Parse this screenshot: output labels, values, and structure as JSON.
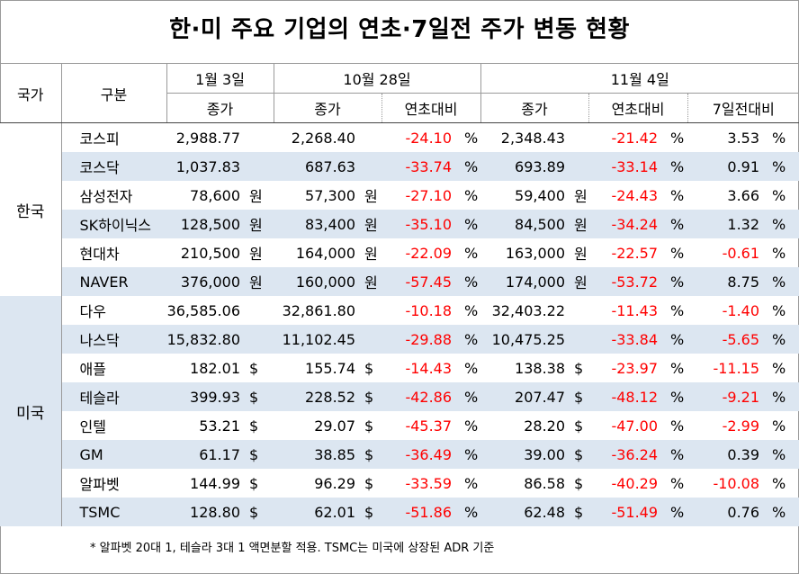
{
  "title": "한·미 주요 기업의 연초·7일전 주가 변동 현황",
  "header": {
    "country": "국가",
    "category": "구분",
    "jan3": "1월 3일",
    "oct28": "10월 28일",
    "nov4": "11월 4일",
    "close": "종가",
    "ytd": "연초대비",
    "d7": "7일전대비"
  },
  "groups": {
    "kr": "한국",
    "us": "미국"
  },
  "rows": [
    {
      "name": "코스피",
      "jan3": "2,988.77",
      "jan3_unit": "",
      "oct28": "2,268.40",
      "oct28_unit": "",
      "oct28_ytd": "-24.10",
      "nov4": "2,348.43",
      "nov4_unit": "",
      "nov4_ytd": "-21.42",
      "nov4_7d": "3.53",
      "pct": "%"
    },
    {
      "name": "코스닥",
      "jan3": "1,037.83",
      "jan3_unit": "",
      "oct28": "687.63",
      "oct28_unit": "",
      "oct28_ytd": "-33.74",
      "nov4": "693.89",
      "nov4_unit": "",
      "nov4_ytd": "-33.14",
      "nov4_7d": "0.91",
      "pct": "%"
    },
    {
      "name": "삼성전자",
      "jan3": "78,600",
      "jan3_unit": "원",
      "oct28": "57,300",
      "oct28_unit": "원",
      "oct28_ytd": "-27.10",
      "nov4": "59,400",
      "nov4_unit": "원",
      "nov4_ytd": "-24.43",
      "nov4_7d": "3.66",
      "pct": "%"
    },
    {
      "name": "SK하이닉스",
      "jan3": "128,500",
      "jan3_unit": "원",
      "oct28": "83,400",
      "oct28_unit": "원",
      "oct28_ytd": "-35.10",
      "nov4": "84,500",
      "nov4_unit": "원",
      "nov4_ytd": "-34.24",
      "nov4_7d": "1.32",
      "pct": "%"
    },
    {
      "name": "현대차",
      "jan3": "210,500",
      "jan3_unit": "원",
      "oct28": "164,000",
      "oct28_unit": "원",
      "oct28_ytd": "-22.09",
      "nov4": "163,000",
      "nov4_unit": "원",
      "nov4_ytd": "-22.57",
      "nov4_7d": "-0.61",
      "pct": "%"
    },
    {
      "name": "NAVER",
      "jan3": "376,000",
      "jan3_unit": "원",
      "oct28": "160,000",
      "oct28_unit": "원",
      "oct28_ytd": "-57.45",
      "nov4": "174,000",
      "nov4_unit": "원",
      "nov4_ytd": "-53.72",
      "nov4_7d": "8.75",
      "pct": "%"
    },
    {
      "name": "다우",
      "jan3": "36,585.06",
      "jan3_unit": "",
      "oct28": "32,861.80",
      "oct28_unit": "",
      "oct28_ytd": "-10.18",
      "nov4": "32,403.22",
      "nov4_unit": "",
      "nov4_ytd": "-11.43",
      "nov4_7d": "-1.40",
      "pct": "%"
    },
    {
      "name": "나스닥",
      "jan3": "15,832.80",
      "jan3_unit": "",
      "oct28": "11,102.45",
      "oct28_unit": "",
      "oct28_ytd": "-29.88",
      "nov4": "10,475.25",
      "nov4_unit": "",
      "nov4_ytd": "-33.84",
      "nov4_7d": "-5.65",
      "pct": "%"
    },
    {
      "name": "애플",
      "jan3": "182.01",
      "jan3_unit": "$",
      "oct28": "155.74",
      "oct28_unit": "$",
      "oct28_ytd": "-14.43",
      "nov4": "138.38",
      "nov4_unit": "$",
      "nov4_ytd": "-23.97",
      "nov4_7d": "-11.15",
      "pct": "%"
    },
    {
      "name": "테슬라",
      "jan3": "399.93",
      "jan3_unit": "$",
      "oct28": "228.52",
      "oct28_unit": "$",
      "oct28_ytd": "-42.86",
      "nov4": "207.47",
      "nov4_unit": "$",
      "nov4_ytd": "-48.12",
      "nov4_7d": "-9.21",
      "pct": "%"
    },
    {
      "name": "인텔",
      "jan3": "53.21",
      "jan3_unit": "$",
      "oct28": "29.07",
      "oct28_unit": "$",
      "oct28_ytd": "-45.37",
      "nov4": "28.20",
      "nov4_unit": "$",
      "nov4_ytd": "-47.00",
      "nov4_7d": "-2.99",
      "pct": "%"
    },
    {
      "name": "GM",
      "jan3": "61.17",
      "jan3_unit": "$",
      "oct28": "38.85",
      "oct28_unit": "$",
      "oct28_ytd": "-36.49",
      "nov4": "39.00",
      "nov4_unit": "$",
      "nov4_ytd": "-36.24",
      "nov4_7d": "0.39",
      "pct": "%"
    },
    {
      "name": "알파벳",
      "jan3": "144.99",
      "jan3_unit": "$",
      "oct28": "96.29",
      "oct28_unit": "$",
      "oct28_ytd": "-33.59",
      "nov4": "86.58",
      "nov4_unit": "$",
      "nov4_ytd": "-40.29",
      "nov4_7d": "-10.08",
      "pct": "%"
    },
    {
      "name": "TSMC",
      "jan3": "128.80",
      "jan3_unit": "$",
      "oct28": "62.01",
      "oct28_unit": "$",
      "oct28_ytd": "-51.86",
      "nov4": "62.48",
      "nov4_unit": "$",
      "nov4_ytd": "-51.49",
      "nov4_7d": "0.76",
      "pct": "%"
    }
  ],
  "footnote": "* 알파벳 20대 1, 테슬라 3대 1 액면분할 적용. TSMC는 미국에 상장된 ADR 기준",
  "colors": {
    "alt_row": "#dce6f1",
    "negative": "#ff0000",
    "border": "#9a9a9a"
  }
}
